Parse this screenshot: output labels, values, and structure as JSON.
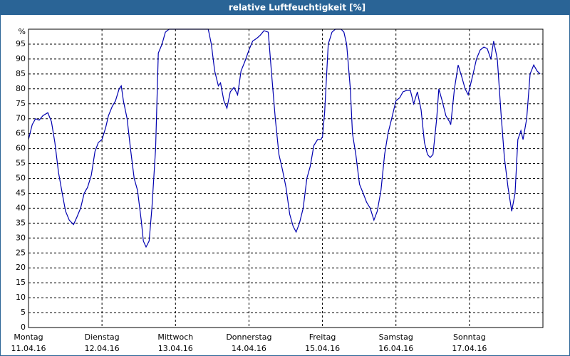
{
  "chart_data": {
    "type": "line",
    "title": "relative Luftfeuchtigkeit [%]",
    "color": "#0000b0",
    "grid": true,
    "xlim": [
      0,
      168
    ],
    "xticks": [
      {
        "value": 0,
        "label": "Montag",
        "date": "11.04.16"
      },
      {
        "value": 24,
        "label": "Dienstag",
        "date": "12.04.16"
      },
      {
        "value": 48,
        "label": "Mittwoch",
        "date": "13.04.16"
      },
      {
        "value": 72,
        "label": "Donnerstag",
        "date": "14.04.16"
      },
      {
        "value": 96,
        "label": "Freitag",
        "date": "15.04.16"
      },
      {
        "value": 120,
        "label": "Samstag",
        "date": "16.04.16"
      },
      {
        "value": 144,
        "label": "Sonntag",
        "date": "17.04.16"
      }
    ],
    "ylim": [
      0,
      100
    ],
    "yticks": [
      0,
      5,
      10,
      15,
      20,
      25,
      30,
      35,
      40,
      45,
      50,
      55,
      60,
      65,
      70,
      75,
      80,
      85,
      90,
      95,
      {
        "value": 100,
        "label": "%"
      }
    ],
    "x": [
      0,
      1.2,
      2.3,
      3.5,
      4.7,
      6.3,
      7.5,
      8.6,
      9.8,
      11,
      12.1,
      13.3,
      14.7,
      15.8,
      17,
      18.2,
      19.3,
      20.5,
      21.7,
      22.8,
      24,
      25.2,
      26.1,
      27.3,
      28.4,
      29.6,
      30.3,
      31,
      32.2,
      33.3,
      34.5,
      35.6,
      36.8,
      37.5,
      38.4,
      39.4,
      40.3,
      41.5,
      42.4,
      43.6,
      44.7,
      45.9,
      48,
      50.8,
      53.6,
      57.1,
      58.7,
      59.7,
      60.8,
      62,
      62.7,
      63.8,
      64.8,
      65.9,
      67.1,
      68.3,
      69.4,
      70.6,
      72,
      73.2,
      74.6,
      75.7,
      76.9,
      78.3,
      79.4,
      80.6,
      81.8,
      82.9,
      84.1,
      85.3,
      86.4,
      87.4,
      88.5,
      89.7,
      90.9,
      92,
      93.2,
      94.4,
      95.5,
      96,
      96.7,
      97.9,
      99.1,
      100.2,
      102.1,
      103,
      103.9,
      105.1,
      105.8,
      106.9,
      108.1,
      109.3,
      110.4,
      111.6,
      112.8,
      113.9,
      115.1,
      116.3,
      117.4,
      118.6,
      120,
      121.2,
      122.3,
      123.5,
      124.7,
      125.8,
      127,
      128.2,
      129.3,
      130.3,
      131.2,
      132.1,
      133.3,
      134,
      135.1,
      136.3,
      137.5,
      137.9,
      139.1,
      140.3,
      141.5,
      142.6,
      143.6,
      144,
      145.2,
      146.3,
      147.5,
      148.7,
      149.8,
      151,
      151.9,
      153.1,
      154.3,
      155.4,
      156.6,
      157.8,
      158.9,
      159.8,
      160.8,
      161.5,
      162.7,
      163.8,
      165,
      166.1,
      167.1
    ],
    "values": [
      63,
      68,
      70,
      69.5,
      71,
      72,
      69,
      62,
      52,
      45,
      39,
      36,
      34.5,
      37,
      40,
      45,
      47,
      51,
      59,
      62,
      63,
      67,
      71,
      74,
      76,
      80,
      81,
      76,
      70,
      60,
      50,
      46,
      36,
      29,
      27,
      29,
      40,
      60,
      92,
      95,
      99,
      100,
      100,
      100,
      100,
      100,
      100,
      95,
      86,
      81,
      82,
      76,
      73.5,
      79,
      80.5,
      78,
      86,
      89,
      93,
      96,
      97,
      98,
      99.5,
      99,
      85,
      70,
      58,
      53,
      47,
      38,
      34,
      32,
      35,
      40,
      50,
      54,
      61,
      63,
      63,
      64,
      72,
      95,
      99,
      100,
      100,
      99,
      95,
      80,
      65,
      58,
      48,
      45,
      42,
      40,
      36,
      39,
      46,
      58,
      65,
      70,
      76,
      77,
      79,
      79.5,
      79.5,
      75,
      79,
      73,
      62,
      58,
      57,
      58,
      70,
      80,
      76,
      71,
      69,
      68,
      80,
      88,
      84,
      80,
      78,
      80,
      85,
      90,
      93,
      94,
      93.5,
      90,
      96,
      90,
      72,
      57,
      47,
      39,
      45,
      63,
      66,
      63,
      70,
      85,
      88,
      86,
      85
    ]
  }
}
